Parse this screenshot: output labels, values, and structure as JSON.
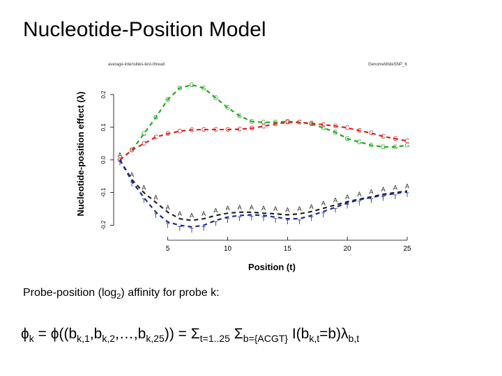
{
  "slide": {
    "title": "Nucleotide-Position Model",
    "caption_prefix": "Probe-position (log",
    "caption_sub": "2",
    "caption_suffix": ") affinity for probe k:",
    "formula_parts": [
      {
        "t": "ϕ"
      },
      {
        "s": "k"
      },
      {
        "t": " = ϕ((b"
      },
      {
        "s": "k,1"
      },
      {
        "t": ",b"
      },
      {
        "s": "k,2"
      },
      {
        "t": ",…,b"
      },
      {
        "s": "k,25"
      },
      {
        "t": ")) = Σ"
      },
      {
        "s": "t=1..25"
      },
      {
        "t": " Σ"
      },
      {
        "s": "b={ACGT}"
      },
      {
        "t": " I(b"
      },
      {
        "s": "k,t"
      },
      {
        "t": "=b)λ"
      },
      {
        "s": "b,t"
      }
    ]
  },
  "chart_data": {
    "type": "line",
    "title": "",
    "left_note": "average-intensities-test-thread",
    "right_note": "GenomeWideSNP_6",
    "xlabel": "Position (t)",
    "ylabel": "Nucleotide-position effect (λ)",
    "xlim": [
      0,
      25
    ],
    "ylim": [
      -0.25,
      0.27
    ],
    "x_ticks": [
      5,
      10,
      15,
      20,
      25
    ],
    "y_ticks": [
      -0.2,
      -0.1,
      0.0,
      0.1,
      0.2
    ],
    "y_tick_labels": [
      "-0.2",
      "-0.1",
      "0.0",
      "0.1",
      "0.2"
    ],
    "grid": false,
    "x": [
      1,
      2,
      3,
      4,
      5,
      6,
      7,
      8,
      9,
      10,
      11,
      12,
      13,
      14,
      15,
      16,
      17,
      18,
      19,
      20,
      21,
      22,
      23,
      24,
      25
    ],
    "series": [
      {
        "name": "G",
        "color": "#22aa22",
        "values": [
          0.0,
          0.03,
          0.08,
          0.13,
          0.185,
          0.22,
          0.23,
          0.22,
          0.19,
          0.16,
          0.135,
          0.118,
          0.115,
          0.115,
          0.118,
          0.115,
          0.11,
          0.098,
          0.085,
          0.065,
          0.055,
          0.045,
          0.04,
          0.04,
          0.045
        ]
      },
      {
        "name": "C",
        "color": "#dd2222",
        "values": [
          0.0,
          0.03,
          0.05,
          0.07,
          0.08,
          0.088,
          0.092,
          0.093,
          0.093,
          0.093,
          0.094,
          0.097,
          0.103,
          0.11,
          0.115,
          0.115,
          0.112,
          0.108,
          0.104,
          0.098,
          0.09,
          0.082,
          0.072,
          0.065,
          0.058
        ]
      },
      {
        "name": "A",
        "color": "#222222",
        "values": [
          0.0,
          -0.06,
          -0.1,
          -0.13,
          -0.16,
          -0.18,
          -0.185,
          -0.18,
          -0.17,
          -0.163,
          -0.16,
          -0.16,
          -0.163,
          -0.165,
          -0.168,
          -0.165,
          -0.158,
          -0.148,
          -0.138,
          -0.128,
          -0.12,
          -0.113,
          -0.105,
          -0.1,
          -0.095
        ]
      },
      {
        "name": "T",
        "color": "#1f2b8f",
        "values": [
          0.0,
          -0.065,
          -0.115,
          -0.16,
          -0.19,
          -0.2,
          -0.205,
          -0.2,
          -0.185,
          -0.175,
          -0.17,
          -0.168,
          -0.17,
          -0.175,
          -0.18,
          -0.18,
          -0.17,
          -0.158,
          -0.145,
          -0.132,
          -0.122,
          -0.115,
          -0.108,
          -0.103,
          -0.097
        ]
      }
    ]
  }
}
